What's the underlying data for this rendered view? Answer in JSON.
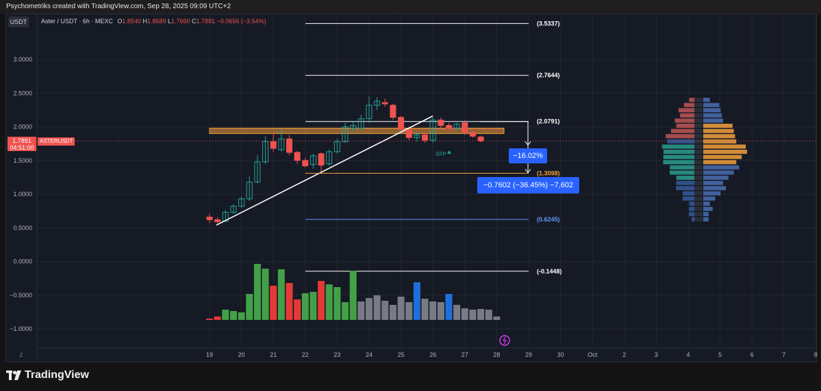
{
  "header": {
    "title": "Psychometriks created with TradingView.com, Sep 28, 2025 09:09 UTC+2"
  },
  "symbol": {
    "currency_badge": "USDT",
    "name": "Aster / USDT · 6h · MEXC",
    "ohlc": {
      "o_label": "O",
      "o": "1.8540",
      "h_label": "H",
      "h": "1.8689",
      "l_label": "L",
      "l": "1.7660",
      "c_label": "C",
      "c": "1.7891",
      "change": "−0.0656 (−3.54%)"
    }
  },
  "price_tag": {
    "price": "1.7891",
    "countdown": "04:51:00",
    "label": "ASTERUSDT"
  },
  "footer": {
    "brand": "TradingView",
    "z_label": "Z"
  },
  "annotations": {
    "fib_levels": [
      {
        "label": "(3.5337)",
        "value": 3.5337,
        "color": "#ffffff"
      },
      {
        "label": "(2.7644)",
        "value": 2.7644,
        "color": "#ffffff"
      },
      {
        "label": "(2.0791)",
        "value": 2.0791,
        "color": "#ffffff"
      },
      {
        "label": "(1.3098)",
        "value": 1.3098,
        "color": "#f2a03d"
      },
      {
        "label": "(0.6245)",
        "value": 0.6245,
        "color": "#5b9cf6"
      },
      {
        "label": "(-0.1448)",
        "value": -0.1448,
        "color": "#ffffff"
      }
    ],
    "box1": "−16.02%",
    "box2": "−0.7602 (−36.45%) −7,602",
    "sfp": "SFP",
    "colors": {
      "up": "#26a69a",
      "down": "#ef5350",
      "box": "#2962ff",
      "zone": "#f2a03d",
      "bg": "#161a25",
      "grid": "#232733",
      "text": "#b2b5be"
    }
  },
  "chart_data": {
    "type": "candlestick",
    "timeframe": "6h",
    "y_ticks": [
      "3.0000",
      "2.5000",
      "2.0000",
      "1.5000",
      "1.0000",
      "0.5000",
      "0.0000",
      "−0.5000",
      "−1.0000"
    ],
    "y_tick_values": [
      3.0,
      2.5,
      2.0,
      1.5,
      1.0,
      0.5,
      0.0,
      -0.5,
      -1.0
    ],
    "ylim": [
      -1.25,
      3.55
    ],
    "x_labels": [
      "19",
      "20",
      "21",
      "22",
      "23",
      "24",
      "25",
      "26",
      "27",
      "28",
      "29",
      "30",
      "Oct",
      "2",
      "3",
      "4",
      "5",
      "6",
      "7",
      "8"
    ],
    "candles": [
      {
        "t": 0,
        "o": 0.66,
        "h": 0.71,
        "l": 0.57,
        "c": 0.62
      },
      {
        "t": 0.25,
        "o": 0.62,
        "h": 0.66,
        "l": 0.56,
        "c": 0.59
      },
      {
        "t": 0.5,
        "o": 0.6,
        "h": 0.76,
        "l": 0.58,
        "c": 0.73
      },
      {
        "t": 0.75,
        "o": 0.73,
        "h": 0.85,
        "l": 0.71,
        "c": 0.82
      },
      {
        "t": 1.0,
        "o": 0.82,
        "h": 0.96,
        "l": 0.8,
        "c": 0.93
      },
      {
        "t": 1.25,
        "o": 0.93,
        "h": 1.26,
        "l": 0.9,
        "c": 1.18
      },
      {
        "t": 1.5,
        "o": 1.18,
        "h": 1.58,
        "l": 1.16,
        "c": 1.48
      },
      {
        "t": 1.75,
        "o": 1.48,
        "h": 1.86,
        "l": 1.45,
        "c": 1.78
      },
      {
        "t": 2.0,
        "o": 1.78,
        "h": 1.9,
        "l": 1.62,
        "c": 1.68
      },
      {
        "t": 2.25,
        "o": 1.66,
        "h": 1.97,
        "l": 1.63,
        "c": 1.82
      },
      {
        "t": 2.5,
        "o": 1.82,
        "h": 1.88,
        "l": 1.58,
        "c": 1.62
      },
      {
        "t": 2.75,
        "o": 1.62,
        "h": 1.64,
        "l": 1.45,
        "c": 1.5
      },
      {
        "t": 3.0,
        "o": 1.5,
        "h": 1.54,
        "l": 1.4,
        "c": 1.42
      },
      {
        "t": 3.25,
        "o": 1.44,
        "h": 1.6,
        "l": 1.38,
        "c": 1.57
      },
      {
        "t": 3.5,
        "o": 1.6,
        "h": 1.62,
        "l": 1.31,
        "c": 1.43
      },
      {
        "t": 3.75,
        "o": 1.45,
        "h": 1.66,
        "l": 1.42,
        "c": 1.63
      },
      {
        "t": 4.0,
        "o": 1.63,
        "h": 1.82,
        "l": 1.6,
        "c": 1.78
      },
      {
        "t": 4.25,
        "o": 1.78,
        "h": 2.06,
        "l": 1.76,
        "c": 2.0
      },
      {
        "t": 4.5,
        "o": 1.98,
        "h": 2.08,
        "l": 1.92,
        "c": 2.02
      },
      {
        "t": 4.75,
        "o": 1.98,
        "h": 2.18,
        "l": 1.96,
        "c": 2.12
      },
      {
        "t": 5.0,
        "o": 2.12,
        "h": 2.45,
        "l": 2.06,
        "c": 2.32
      },
      {
        "t": 5.25,
        "o": 2.32,
        "h": 2.44,
        "l": 2.25,
        "c": 2.38
      },
      {
        "t": 5.5,
        "o": 2.36,
        "h": 2.42,
        "l": 2.3,
        "c": 2.34
      },
      {
        "t": 5.75,
        "o": 2.32,
        "h": 2.34,
        "l": 2.1,
        "c": 2.14
      },
      {
        "t": 6.0,
        "o": 2.14,
        "h": 2.16,
        "l": 1.92,
        "c": 1.96
      },
      {
        "t": 6.25,
        "o": 1.96,
        "h": 2.0,
        "l": 1.8,
        "c": 1.84
      },
      {
        "t": 6.5,
        "o": 1.84,
        "h": 1.92,
        "l": 1.78,
        "c": 1.88
      },
      {
        "t": 6.75,
        "o": 1.88,
        "h": 1.9,
        "l": 1.76,
        "c": 1.8
      },
      {
        "t": 7.0,
        "o": 1.8,
        "h": 2.14,
        "l": 1.76,
        "c": 2.1
      },
      {
        "t": 7.25,
        "o": 2.1,
        "h": 2.14,
        "l": 1.98,
        "c": 2.02
      },
      {
        "t": 7.5,
        "o": 2.02,
        "h": 2.06,
        "l": 1.94,
        "c": 1.98
      },
      {
        "t": 7.75,
        "o": 1.98,
        "h": 2.06,
        "l": 1.94,
        "c": 2.04
      },
      {
        "t": 8.0,
        "o": 2.06,
        "h": 2.1,
        "l": 1.88,
        "c": 1.92
      },
      {
        "t": 8.25,
        "o": 1.92,
        "h": 1.94,
        "l": 1.84,
        "c": 1.86
      },
      {
        "t": 8.5,
        "o": 1.85,
        "h": 1.87,
        "l": 1.77,
        "c": 1.79
      }
    ],
    "volume_bars": [
      {
        "t": 0,
        "v": 0.02,
        "c": "#e53935"
      },
      {
        "t": 0.25,
        "v": 0.05,
        "c": "#e53935"
      },
      {
        "t": 0.5,
        "v": 0.15,
        "c": "#43a047"
      },
      {
        "t": 0.75,
        "v": 0.13,
        "c": "#43a047"
      },
      {
        "t": 1.0,
        "v": 0.11,
        "c": "#43a047"
      },
      {
        "t": 1.25,
        "v": 0.38,
        "c": "#43a047"
      },
      {
        "t": 1.5,
        "v": 0.82,
        "c": "#43a047"
      },
      {
        "t": 1.75,
        "v": 0.75,
        "c": "#43a047"
      },
      {
        "t": 2.0,
        "v": 0.5,
        "c": "#e53935"
      },
      {
        "t": 2.25,
        "v": 0.74,
        "c": "#43a047"
      },
      {
        "t": 2.5,
        "v": 0.54,
        "c": "#e53935"
      },
      {
        "t": 2.75,
        "v": 0.3,
        "c": "#e53935"
      },
      {
        "t": 3.0,
        "v": 0.39,
        "c": "#43a047"
      },
      {
        "t": 3.25,
        "v": 0.41,
        "c": "#43a047"
      },
      {
        "t": 3.5,
        "v": 0.57,
        "c": "#e53935"
      },
      {
        "t": 3.75,
        "v": 0.52,
        "c": "#43a047"
      },
      {
        "t": 4.0,
        "v": 0.48,
        "c": "#43a047"
      },
      {
        "t": 4.25,
        "v": 0.26,
        "c": "#43a047"
      },
      {
        "t": 4.5,
        "v": 0.72,
        "c": "#43a047"
      },
      {
        "t": 4.75,
        "v": 0.27,
        "c": "#787b86"
      },
      {
        "t": 5.0,
        "v": 0.32,
        "c": "#787b86"
      },
      {
        "t": 5.25,
        "v": 0.36,
        "c": "#787b86"
      },
      {
        "t": 5.5,
        "v": 0.28,
        "c": "#787b86"
      },
      {
        "t": 5.75,
        "v": 0.22,
        "c": "#787b86"
      },
      {
        "t": 6.0,
        "v": 0.34,
        "c": "#787b86"
      },
      {
        "t": 6.25,
        "v": 0.26,
        "c": "#787b86"
      },
      {
        "t": 6.5,
        "v": 0.55,
        "c": "#1e6fd9"
      },
      {
        "t": 6.75,
        "v": 0.31,
        "c": "#787b86"
      },
      {
        "t": 7.0,
        "v": 0.27,
        "c": "#787b86"
      },
      {
        "t": 7.25,
        "v": 0.26,
        "c": "#787b86"
      },
      {
        "t": 7.5,
        "v": 0.38,
        "c": "#1e6fd9"
      },
      {
        "t": 7.75,
        "v": 0.22,
        "c": "#787b86"
      },
      {
        "t": 8.0,
        "v": 0.17,
        "c": "#787b86"
      },
      {
        "t": 8.25,
        "v": 0.15,
        "c": "#787b86"
      },
      {
        "t": 8.5,
        "v": 0.16,
        "c": "#787b86"
      },
      {
        "t": 8.75,
        "v": 0.15,
        "c": "#787b86"
      },
      {
        "t": 9.0,
        "v": 0.05,
        "c": "#787b86"
      }
    ],
    "volume_profile_levels": 24
  }
}
